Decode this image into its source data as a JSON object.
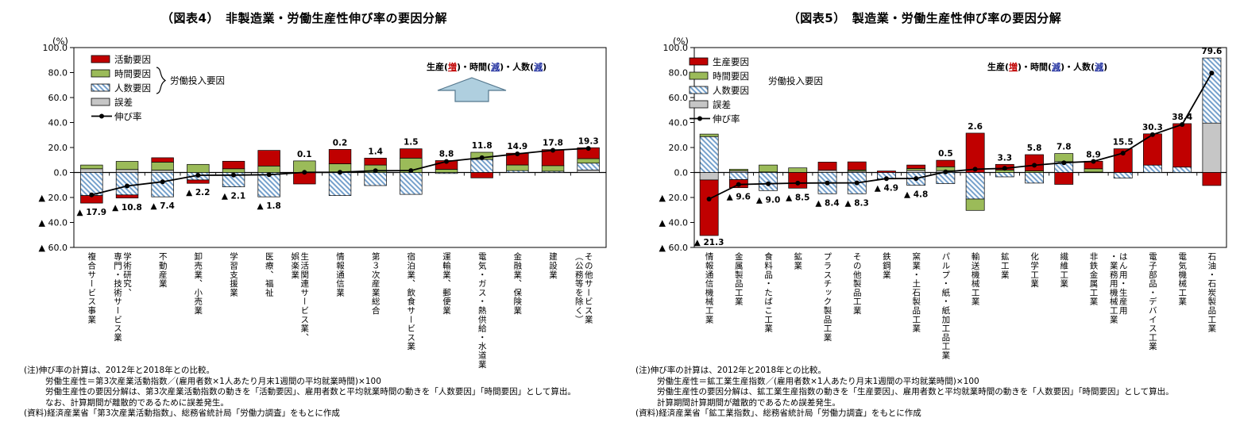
{
  "colors": {
    "red": "#C00000",
    "green": "#9BBB59",
    "hatch_stripe": "#6D9BC9",
    "hatch_bg": "#FFFFFF",
    "gray": "#C6C6C6",
    "line": "#000000",
    "axis": "#000000",
    "arrow_fill": "#AFCFDF",
    "arrow_stroke": "#55788E",
    "annotation_increase": "#C00000",
    "annotation_decrease": "#2433A0"
  },
  "charts": [
    {
      "title": "（図表4）　非製造業・労働生産性伸び率の要因分解",
      "unit_label": "(%)",
      "legend": [
        {
          "label": "活動要因",
          "color_key": "red",
          "type": "solid"
        },
        {
          "label": "時間要因",
          "color_key": "green",
          "type": "solid"
        },
        {
          "label": "人数要因",
          "color_key": "hatch",
          "type": "hatch"
        },
        {
          "label": "誤差",
          "color_key": "gray",
          "type": "solid"
        },
        {
          "label": "伸び率",
          "type": "line"
        }
      ],
      "legend_group_label": "労働投入要因",
      "legend_group_bracket": true,
      "annotation": {
        "arrow": true,
        "parts": [
          {
            "text": "生産("
          },
          {
            "text": "増",
            "color": "#C00000",
            "underline": true
          },
          {
            "text": ")・時間("
          },
          {
            "text": "減",
            "color": "#2433A0",
            "underline": true
          },
          {
            "text": ")・人数("
          },
          {
            "text": "減",
            "color": "#2433A0",
            "underline": true
          },
          {
            "text": ")"
          }
        ]
      },
      "chart_data": {
        "type": "bar",
        "subtype": "stacked-bar-with-line",
        "ylim": [
          -60,
          100
        ],
        "ytick_step": 20,
        "ytick_labels": [
          "100.0",
          "80.0",
          "60.0",
          "40.0",
          "20.0",
          "0.0",
          "▲ 20.0",
          "▲ 40.0",
          "▲ 60.0"
        ],
        "grid": false,
        "negative_label_prefix": "▲ ",
        "categories": [
          "複合サービス事業",
          "学術研究、\n専門・技術サービス業",
          "不動産業",
          "卸売業、小売業",
          "学習支援業",
          "医療、福祉",
          "生活関連サービス業、\n娯楽業",
          "情報通信業",
          "第３次産業総合",
          "宿泊業、飲食サービス業",
          "運輸業、郵便業",
          "電気・ガス・熱供給・水道業",
          "金融業、保険業",
          "建設業",
          "その他サービス業\n（公務等を除く）"
        ],
        "series": [
          {
            "name": "活動要因",
            "color_key": "red",
            "values": [
              -6.0,
              -2.5,
              3.5,
              -2.7,
              6.0,
              12.5,
              -9.2,
              11.5,
              5.5,
              7.5,
              7.0,
              -4.3,
              9.4,
              12.8,
              8.7
            ]
          },
          {
            "name": "時間要因",
            "color_key": "green",
            "values": [
              3.0,
              6.5,
              6.5,
              6.5,
              3.0,
              5.2,
              9.3,
              7.0,
              6.0,
              11.5,
              2.5,
              5.7,
              4.5,
              4.5,
              3.6
            ]
          },
          {
            "name": "人数要因",
            "color_key": "hatch",
            "values": [
              -18.5,
              -18.0,
              -19.5,
              -6.0,
              -11.5,
              -19.5,
              0,
              -18.5,
              -10.5,
              -17.5,
              -0.8,
              10.5,
              1.5,
              1.0,
              5.5
            ]
          },
          {
            "name": "誤差",
            "color_key": "gray",
            "values": [
              3.0,
              2.4,
              1.8,
              0,
              0,
              0,
              0,
              0,
              0,
              0,
              0,
              0,
              0,
              0,
              2.0
            ]
          },
          {
            "name": "伸び率",
            "type": "line",
            "values": [
              -17.9,
              -10.8,
              -7.4,
              -2.2,
              -2.1,
              -1.8,
              0.1,
              0.2,
              1.4,
              1.5,
              8.8,
              11.8,
              14.9,
              17.8,
              19.3
            ]
          }
        ],
        "point_labels": [
          "▲ 17.9",
          "▲ 10.8",
          "▲ 7.4",
          "▲ 2.2",
          "▲ 2.1",
          "▲ 1.8",
          "0.1",
          "0.2",
          "1.4",
          "1.5",
          "8.8",
          "11.8",
          "14.9",
          "17.8",
          "19.3"
        ]
      },
      "notes": [
        "(注)伸び率の計算は、2012年と2018年との比較。",
        "労働生産性＝第3次産業活動指数／(雇用者数×1人あたり月末1週間の平均就業時間)×100",
        "労働生産性の要因分解は、第3次産業活動指数の動きを「活動要因」、雇用者数と平均就業時間の動きを「人数要因」「時間要因」として算出。",
        "なお、計算期間が離散的であるために誤差発生。",
        "(資料)経済産業省「第3次産業活動指数」、総務省統計局「労働力調査」をもとに作成"
      ]
    },
    {
      "title": "（図表5）　製造業・労働生産性伸び率の要因分解",
      "unit_label": "(%)",
      "legend": [
        {
          "label": "生産要因",
          "color_key": "red",
          "type": "solid"
        },
        {
          "label": "時間要因",
          "color_key": "green",
          "type": "solid"
        },
        {
          "label": "人数要因",
          "color_key": "hatch",
          "type": "hatch"
        },
        {
          "label": "誤差",
          "color_key": "gray",
          "type": "solid"
        },
        {
          "label": "伸び率",
          "type": "line"
        }
      ],
      "legend_group_label": "労働投入要因",
      "legend_group_bracket": false,
      "annotation": {
        "arrow": false,
        "parts": [
          {
            "text": "生産("
          },
          {
            "text": "増",
            "color": "#C00000",
            "underline": true
          },
          {
            "text": ")・時間("
          },
          {
            "text": "減",
            "color": "#2433A0",
            "underline": true
          },
          {
            "text": ")・人数("
          },
          {
            "text": "減",
            "color": "#2433A0",
            "underline": true
          },
          {
            "text": ")"
          }
        ]
      },
      "chart_data": {
        "type": "bar",
        "subtype": "stacked-bar-with-line",
        "ylim": [
          -60,
          100
        ],
        "ytick_step": 20,
        "ytick_labels": [
          "100.0",
          "80.0",
          "60.0",
          "40.0",
          "20.0",
          "0.0",
          "▲ 20.0",
          "▲ 40.0",
          "▲ 60.0"
        ],
        "grid": false,
        "negative_label_prefix": "▲ ",
        "categories": [
          "情報通信機械工業",
          "金属製品工業",
          "食料品・たばこ工業",
          "鉱業",
          "プラスチック製品工業",
          "その他製品工業",
          "鉄鋼業",
          "窯業・土石製品工業",
          "パルプ・紙・紙加工品工業",
          "輸送機械工業",
          "鉱工業",
          "化学工業",
          "繊維工業",
          "非鉄金属工業",
          "はん用・生産用\n・業務用機械工業",
          "電子部品・デバイス工業",
          "電気機械工業",
          "石油・石炭製品工業"
        ],
        "series": [
          {
            "name": "生産要因",
            "color_key": "red",
            "values": [
              -44.5,
              -6.5,
              0,
              -12.6,
              6.5,
              6.5,
              1.2,
              2.8,
              5.2,
              31.5,
              4.5,
              13.0,
              -9.5,
              6.0,
              19.0,
              25.0,
              34.8,
              -10.4
            ]
          },
          {
            "name": "時間要因",
            "color_key": "green",
            "values": [
              2.0,
              1.3,
              5.5,
              3.7,
              0,
              1.0,
              0,
              1.5,
              3.1,
              -9.1,
              2.0,
              1.3,
              6.5,
              2.6,
              0,
              0,
              0,
              0
            ]
          },
          {
            "name": "人数要因",
            "color_key": "hatch",
            "values": [
              28.7,
              -5.7,
              -14.5,
              0,
              -17.0,
              -17.0,
              -5.2,
              -10.2,
              -8.9,
              -21.3,
              -3.5,
              -8.5,
              8.7,
              0,
              -4.5,
              5.9,
              4.3,
              52.1
            ]
          },
          {
            "name": "誤差",
            "color_key": "gray",
            "values": [
              -6.0,
              1.3,
              0.5,
              0,
              1.8,
              1.0,
              0,
              1.7,
              1.5,
              0,
              0,
              0,
              0,
              0.4,
              0,
              0,
              0,
              39.6
            ]
          },
          {
            "name": "伸び率",
            "type": "line",
            "values": [
              -21.3,
              -9.6,
              -9.0,
              -8.5,
              -8.4,
              -8.3,
              -4.9,
              -4.8,
              0.5,
              2.6,
              3.3,
              5.8,
              7.8,
              8.9,
              15.5,
              30.3,
              38.4,
              79.6
            ]
          }
        ],
        "point_labels": [
          "▲ 21.3",
          "▲ 9.6",
          "▲ 9.0",
          "▲ 8.5",
          "▲ 8.4",
          "▲ 8.3",
          "▲ 4.9",
          "▲ 4.8",
          "0.5",
          "2.6",
          "3.3",
          "5.8",
          "7.8",
          "8.9",
          "15.5",
          "30.3",
          "38.4",
          "79.6"
        ]
      },
      "notes": [
        "(注)伸び率の計算は、2012年と2018年との比較。",
        "労働生産性＝鉱工業生産指数／(雇用者数×1人あたり月末1週間の平均就業時間)×100",
        "労働生産性の要因分解は、鉱工業生産指数の動きを「生産要因」、雇用者数と平均就業時間の動きを「人数要因」「時間要因」として算出。",
        "計算期間計算期間が離散的であるため誤差発生。",
        "(資料)経済産業省「鉱工業指数」、総務省統計局「労働力調査」をもとに作成"
      ]
    }
  ]
}
